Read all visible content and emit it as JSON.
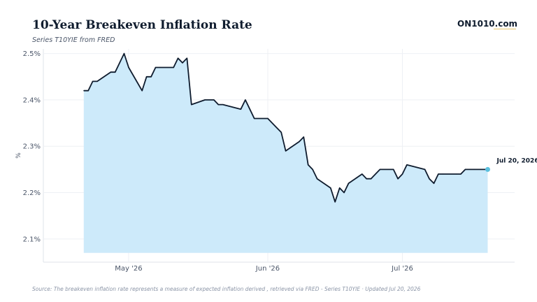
{
  "header": {
    "title": "10-Year Breakeven Inflation Rate",
    "subtitle": "Series T10YIE from FRED",
    "brand": "ON1010.com"
  },
  "footer": {
    "source": "Source: The breakeven inflation rate represents a measure of expected inflation derived , retrieved via FRED - Series T10YIE · Updated Jul 20, 2026"
  },
  "colors": {
    "line": "#0f1c2e",
    "fill": "#cdeafa",
    "end_marker": "#5bc0de",
    "grid": "#eef0f4",
    "axis_text": "#4a5568"
  },
  "chart_data": {
    "type": "area",
    "title": "10-Year Breakeven Inflation Rate",
    "ylabel": "%",
    "ylim": [
      2.05,
      2.51
    ],
    "y_ticks": [
      {
        "value": 2.1,
        "label": "2.1%"
      },
      {
        "value": 2.2,
        "label": "2.2%"
      },
      {
        "value": 2.3,
        "label": "2.3%"
      },
      {
        "value": 2.4,
        "label": "2.4%"
      },
      {
        "value": 2.5,
        "label": "2.5%"
      }
    ],
    "x_ticks": [
      {
        "date": "2026-05-01",
        "label": "May '26"
      },
      {
        "date": "2026-06-01",
        "label": "Jun '26"
      },
      {
        "date": "2026-07-01",
        "label": "Jul '26"
      }
    ],
    "end_label": "Jul 20, 2026",
    "grid": true,
    "series": [
      {
        "x": [
          "2026-04-21",
          "2026-04-22",
          "2026-04-23",
          "2026-04-24",
          "2026-04-27",
          "2026-04-28",
          "2026-04-29",
          "2026-04-30",
          "2026-05-01",
          "2026-05-04",
          "2026-05-05",
          "2026-05-06",
          "2026-05-07",
          "2026-05-08",
          "2026-05-11",
          "2026-05-12",
          "2026-05-13",
          "2026-05-14",
          "2026-05-15",
          "2026-05-18",
          "2026-05-19",
          "2026-05-20",
          "2026-05-21",
          "2026-05-22",
          "2026-05-26",
          "2026-05-27",
          "2026-05-28",
          "2026-05-29",
          "2026-06-01",
          "2026-06-02",
          "2026-06-03",
          "2026-06-04",
          "2026-06-05",
          "2026-06-08",
          "2026-06-09",
          "2026-06-10",
          "2026-06-11",
          "2026-06-12",
          "2026-06-15",
          "2026-06-16",
          "2026-06-17",
          "2026-06-18",
          "2026-06-19",
          "2026-06-22",
          "2026-06-23",
          "2026-06-24",
          "2026-06-25",
          "2026-06-26",
          "2026-06-29",
          "2026-06-30",
          "2026-07-01",
          "2026-07-02",
          "2026-07-06",
          "2026-07-07",
          "2026-07-08",
          "2026-07-09",
          "2026-07-10",
          "2026-07-13",
          "2026-07-14",
          "2026-07-15",
          "2026-07-16",
          "2026-07-17",
          "2026-07-20"
        ],
        "values": [
          2.42,
          2.42,
          2.44,
          2.44,
          2.46,
          2.46,
          2.48,
          2.5,
          2.47,
          2.42,
          2.45,
          2.45,
          2.47,
          2.47,
          2.47,
          2.49,
          2.48,
          2.49,
          2.39,
          2.4,
          2.4,
          2.4,
          2.39,
          2.39,
          2.38,
          2.4,
          2.38,
          2.36,
          2.36,
          2.35,
          2.34,
          2.33,
          2.29,
          2.31,
          2.32,
          2.26,
          2.25,
          2.23,
          2.21,
          2.18,
          2.21,
          2.2,
          2.22,
          2.24,
          2.23,
          2.23,
          2.24,
          2.25,
          2.25,
          2.23,
          2.24,
          2.26,
          2.25,
          2.23,
          2.22,
          2.24,
          2.24,
          2.24,
          2.24,
          2.25,
          2.25,
          2.25,
          2.25
        ]
      }
    ]
  }
}
